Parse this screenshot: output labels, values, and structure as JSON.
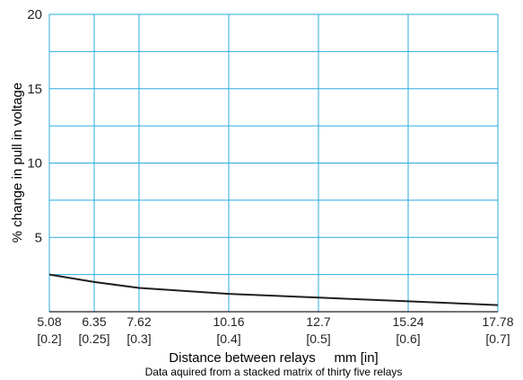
{
  "chart_data": {
    "type": "line",
    "title": "",
    "xlabel": "Distance between relays     mm [in]",
    "ylabel": "% change in pull in voltage",
    "note": "Data aquired from a stacked matrix of thirty five relays",
    "xlim": [
      5.08,
      17.78
    ],
    "ylim": [
      0,
      20
    ],
    "grid": true,
    "x_ticks": [
      {
        "value": 5.08,
        "mm": "5.08",
        "in": "[0.2]"
      },
      {
        "value": 6.35,
        "mm": "6.35",
        "in": "[0.25]"
      },
      {
        "value": 7.62,
        "mm": "7.62",
        "in": "[0.3]"
      },
      {
        "value": 10.16,
        "mm": "10.16",
        "in": "[0.4]"
      },
      {
        "value": 12.7,
        "mm": "12.7",
        "in": "[0.5]"
      },
      {
        "value": 15.24,
        "mm": "15.24",
        "in": "[0.6]"
      },
      {
        "value": 17.78,
        "mm": "17.78",
        "in": "[0.7]"
      }
    ],
    "y_ticks": [
      {
        "value": 5,
        "label": "5"
      },
      {
        "value": 10,
        "label": "10"
      },
      {
        "value": 15,
        "label": "15"
      },
      {
        "value": 20,
        "label": "20"
      }
    ],
    "y_gridlines": [
      2.5,
      5,
      7.5,
      10,
      12.5,
      15,
      17.5,
      20
    ],
    "series": [
      {
        "x": [
          5.08,
          6.35,
          7.62,
          10.16,
          12.7,
          15.24,
          17.78
        ],
        "y": [
          2.5,
          2.0,
          1.6,
          1.2,
          0.95,
          0.7,
          0.45
        ]
      }
    ]
  },
  "colors": {
    "grid": "#29abe2",
    "line": "#231f20",
    "text": "#231f20"
  }
}
